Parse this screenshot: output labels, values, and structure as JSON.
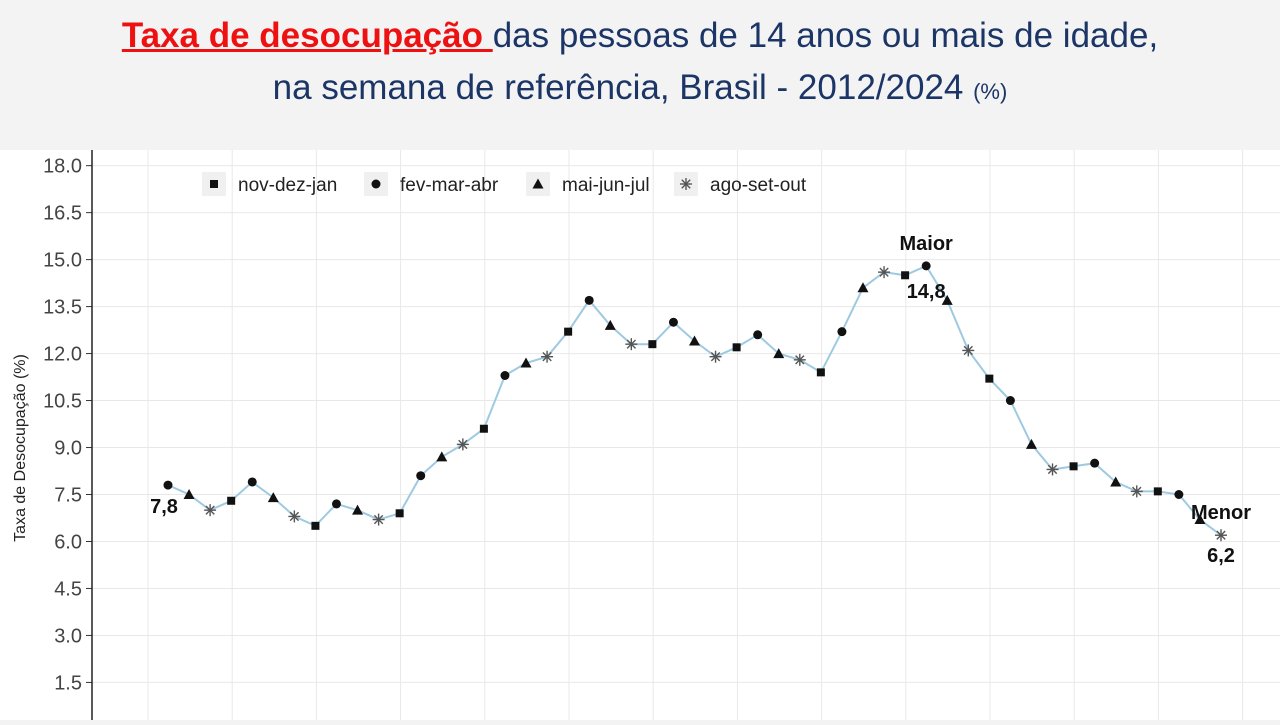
{
  "title": {
    "highlight": "Taxa de desocupação ",
    "rest_line1": "das pessoas de 14 anos ou mais de idade,",
    "line2": "na semana de referência, Brasil - 2012/2024",
    "unit": "(%)"
  },
  "chart_data": {
    "type": "line",
    "ylabel": "Taxa de Desocupação (%)",
    "ylim": [
      0.3,
      18.5
    ],
    "yticks": [
      "1.5",
      "3.0",
      "4.5",
      "6.0",
      "7.5",
      "9.0",
      "10.5",
      "12.0",
      "13.5",
      "15.0",
      "16.5",
      "18.0"
    ],
    "grid": true,
    "legend_position": "top-left",
    "line_color": "#9ecae1",
    "series": [
      {
        "name": "nov-dez-jan",
        "marker": "square"
      },
      {
        "name": "fev-mar-abr",
        "marker": "circle"
      },
      {
        "name": "mai-jun-jul",
        "marker": "triangle"
      },
      {
        "name": "ago-set-out",
        "marker": "asterisk"
      }
    ],
    "values": [
      7.8,
      7.5,
      7.0,
      7.3,
      7.9,
      7.4,
      6.8,
      6.5,
      7.2,
      7.0,
      6.7,
      6.9,
      8.1,
      8.7,
      9.1,
      9.6,
      11.3,
      11.7,
      11.9,
      12.7,
      13.7,
      12.9,
      12.3,
      12.3,
      13.0,
      12.4,
      11.9,
      12.2,
      12.6,
      12.0,
      11.8,
      11.4,
      12.7,
      14.1,
      14.6,
      14.5,
      14.8,
      13.7,
      12.1,
      11.2,
      10.5,
      9.1,
      8.3,
      8.4,
      8.5,
      7.9,
      7.6,
      7.6,
      7.5,
      6.7,
      6.2
    ],
    "annotations": [
      {
        "label": "7,8",
        "index": 0
      },
      {
        "label": "Maior",
        "index": 36
      },
      {
        "label": "14,8",
        "index": 36
      },
      {
        "label": "Menor",
        "index": 50
      },
      {
        "label": "6,2",
        "index": 50
      }
    ]
  }
}
